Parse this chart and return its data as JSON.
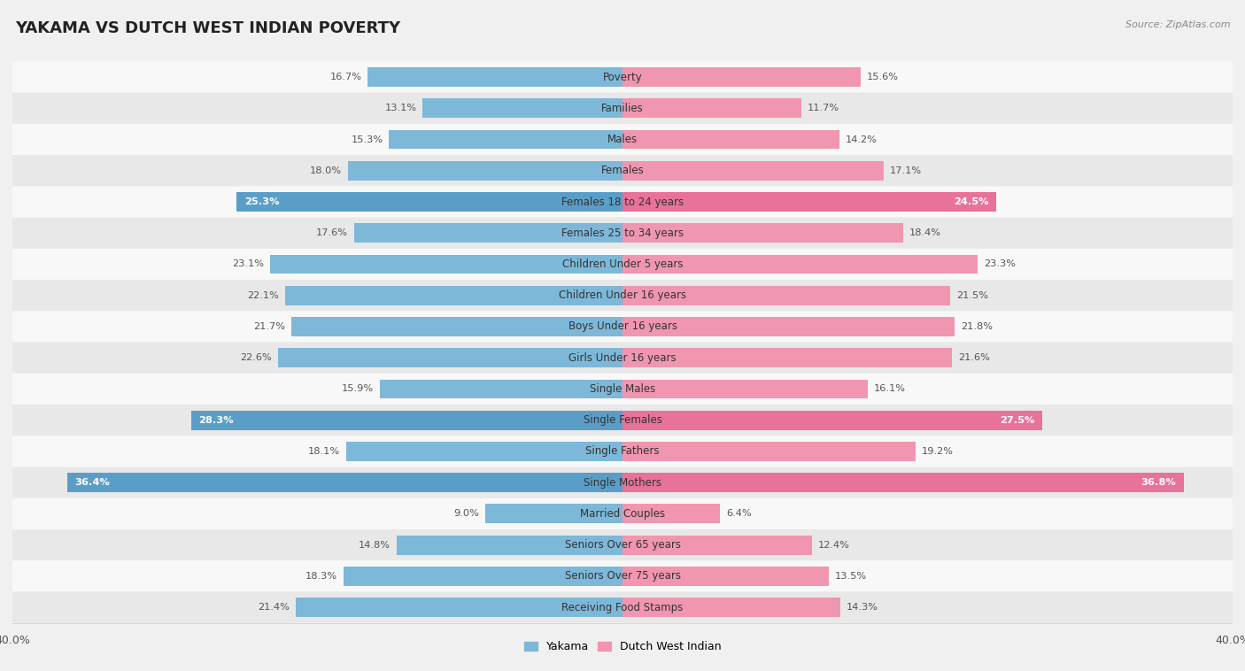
{
  "title": "YAKAMA VS DUTCH WEST INDIAN POVERTY",
  "source": "Source: ZipAtlas.com",
  "categories": [
    "Poverty",
    "Families",
    "Males",
    "Females",
    "Females 18 to 24 years",
    "Females 25 to 34 years",
    "Children Under 5 years",
    "Children Under 16 years",
    "Boys Under 16 years",
    "Girls Under 16 years",
    "Single Males",
    "Single Females",
    "Single Fathers",
    "Single Mothers",
    "Married Couples",
    "Seniors Over 65 years",
    "Seniors Over 75 years",
    "Receiving Food Stamps"
  ],
  "yakama": [
    16.7,
    13.1,
    15.3,
    18.0,
    25.3,
    17.6,
    23.1,
    22.1,
    21.7,
    22.6,
    15.9,
    28.3,
    18.1,
    36.4,
    9.0,
    14.8,
    18.3,
    21.4
  ],
  "dutch_west_indian": [
    15.6,
    11.7,
    14.2,
    17.1,
    24.5,
    18.4,
    23.3,
    21.5,
    21.8,
    21.6,
    16.1,
    27.5,
    19.2,
    36.8,
    6.4,
    12.4,
    13.5,
    14.3
  ],
  "yakama_color": "#7db8d8",
  "dutch_west_indian_color": "#f096b0",
  "highlight_yakama_color": "#5a9ec8",
  "highlight_dutch_color": "#e8729a",
  "highlight_rows": [
    4,
    11,
    13
  ],
  "bar_height": 0.62,
  "xlim": 40.0,
  "bg_color": "#f0f0f0",
  "row_bg_light": "#f8f8f8",
  "row_bg_dark": "#e8e8e8",
  "title_fontsize": 13,
  "label_fontsize": 8.5,
  "value_fontsize": 8.2,
  "axis_label_fontsize": 9
}
